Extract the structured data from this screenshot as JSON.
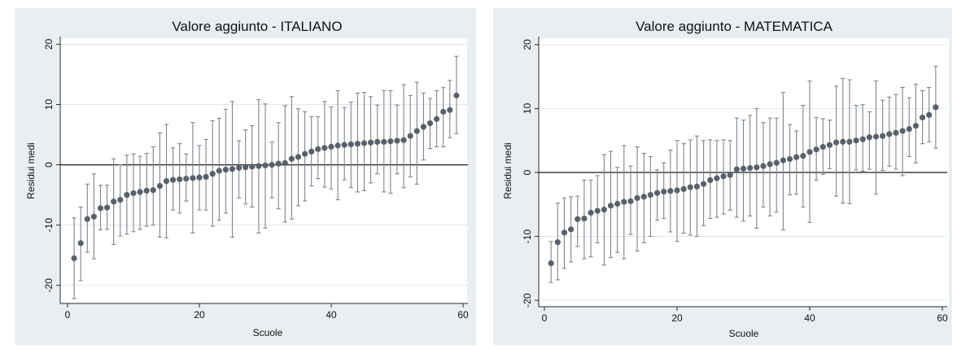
{
  "chart_data": [
    {
      "type": "scatter",
      "title": "Valore aggiunto - ITALIANO",
      "xlabel": "Scuole",
      "ylabel": "Residui medi",
      "xlim": [
        0,
        60
      ],
      "ylim": [
        -23,
        21
      ],
      "xticks": [
        0,
        20,
        40,
        60
      ],
      "yticks": [
        -20,
        -10,
        0,
        10,
        20
      ],
      "grid": true,
      "reference_line_y": 0,
      "error_bars": true,
      "points": [
        {
          "x": 1,
          "y": -15.5,
          "lo": -22.2,
          "hi": -8.8
        },
        {
          "x": 2,
          "y": -13.0,
          "lo": -19.2,
          "hi": -7.0
        },
        {
          "x": 3,
          "y": -9.0,
          "lo": -14.5,
          "hi": -3.2
        },
        {
          "x": 4,
          "y": -8.6,
          "lo": -15.6,
          "hi": -1.5
        },
        {
          "x": 5,
          "y": -7.2,
          "lo": -10.8,
          "hi": -3.4
        },
        {
          "x": 6,
          "y": -7.1,
          "lo": -10.7,
          "hi": -3.4
        },
        {
          "x": 7,
          "y": -6.1,
          "lo": -13.2,
          "hi": 1.0
        },
        {
          "x": 8,
          "y": -5.8,
          "lo": -11.8,
          "hi": 0.0
        },
        {
          "x": 9,
          "y": -5.0,
          "lo": -11.5,
          "hi": 1.6
        },
        {
          "x": 10,
          "y": -4.7,
          "lo": -11.1,
          "hi": 1.8
        },
        {
          "x": 11,
          "y": -4.5,
          "lo": -10.7,
          "hi": 1.4
        },
        {
          "x": 12,
          "y": -4.3,
          "lo": -10.2,
          "hi": 1.9
        },
        {
          "x": 13,
          "y": -4.2,
          "lo": -10.0,
          "hi": 3.0
        },
        {
          "x": 14,
          "y": -3.5,
          "lo": -12.0,
          "hi": 5.3
        },
        {
          "x": 15,
          "y": -2.7,
          "lo": -12.1,
          "hi": 6.7
        },
        {
          "x": 16,
          "y": -2.5,
          "lo": -7.5,
          "hi": 2.8
        },
        {
          "x": 17,
          "y": -2.4,
          "lo": -8.0,
          "hi": 3.5
        },
        {
          "x": 18,
          "y": -2.3,
          "lo": -6.0,
          "hi": 1.8
        },
        {
          "x": 19,
          "y": -2.2,
          "lo": -11.3,
          "hi": 7.0
        },
        {
          "x": 20,
          "y": -2.1,
          "lo": -7.5,
          "hi": 3.2
        },
        {
          "x": 21,
          "y": -2.0,
          "lo": -7.5,
          "hi": 4.2
        },
        {
          "x": 22,
          "y": -1.5,
          "lo": -10.2,
          "hi": 7.3
        },
        {
          "x": 23,
          "y": -1.0,
          "lo": -9.2,
          "hi": 7.7
        },
        {
          "x": 24,
          "y": -0.8,
          "lo": -8.0,
          "hi": 9.2
        },
        {
          "x": 25,
          "y": -0.7,
          "lo": -12.0,
          "hi": 10.5
        },
        {
          "x": 26,
          "y": -0.5,
          "lo": -5.5,
          "hi": 4.0
        },
        {
          "x": 27,
          "y": -0.4,
          "lo": -6.5,
          "hi": 5.8
        },
        {
          "x": 28,
          "y": -0.3,
          "lo": -7.0,
          "hi": 6.5
        },
        {
          "x": 29,
          "y": -0.2,
          "lo": -11.3,
          "hi": 10.8
        },
        {
          "x": 30,
          "y": -0.1,
          "lo": -10.5,
          "hi": 10.1
        },
        {
          "x": 31,
          "y": 0.0,
          "lo": -5.5,
          "hi": 3.8
        },
        {
          "x": 32,
          "y": 0.2,
          "lo": -7.3,
          "hi": 7.0
        },
        {
          "x": 33,
          "y": 0.3,
          "lo": -9.5,
          "hi": 9.8
        },
        {
          "x": 34,
          "y": 1.0,
          "lo": -9.0,
          "hi": 11.3
        },
        {
          "x": 35,
          "y": 1.3,
          "lo": -6.8,
          "hi": 9.3
        },
        {
          "x": 36,
          "y": 1.8,
          "lo": -6.0,
          "hi": 8.8
        },
        {
          "x": 37,
          "y": 2.2,
          "lo": -3.5,
          "hi": 8.0
        },
        {
          "x": 38,
          "y": 2.6,
          "lo": -2.3,
          "hi": 8.0
        },
        {
          "x": 39,
          "y": 2.8,
          "lo": -3.7,
          "hi": 10.5
        },
        {
          "x": 40,
          "y": 3.0,
          "lo": -4.0,
          "hi": 9.6
        },
        {
          "x": 41,
          "y": 3.2,
          "lo": -5.8,
          "hi": 12.3
        },
        {
          "x": 42,
          "y": 3.3,
          "lo": -2.5,
          "hi": 9.5
        },
        {
          "x": 43,
          "y": 3.4,
          "lo": -3.8,
          "hi": 10.4
        },
        {
          "x": 44,
          "y": 3.5,
          "lo": -4.5,
          "hi": 11.9
        },
        {
          "x": 45,
          "y": 3.6,
          "lo": -4.3,
          "hi": 12.0
        },
        {
          "x": 46,
          "y": 3.7,
          "lo": -3.0,
          "hi": 11.3
        },
        {
          "x": 47,
          "y": 3.8,
          "lo": -1.5,
          "hi": 9.9
        },
        {
          "x": 48,
          "y": 3.8,
          "lo": -4.5,
          "hi": 12.3
        },
        {
          "x": 49,
          "y": 3.9,
          "lo": -4.7,
          "hi": 12.3
        },
        {
          "x": 50,
          "y": 4.0,
          "lo": -1.5,
          "hi": 9.9
        },
        {
          "x": 51,
          "y": 4.1,
          "lo": -3.8,
          "hi": 13.3
        },
        {
          "x": 52,
          "y": 4.8,
          "lo": -2.0,
          "hi": 11.5
        },
        {
          "x": 53,
          "y": 5.6,
          "lo": -3.2,
          "hi": 13.7
        },
        {
          "x": 54,
          "y": 6.3,
          "lo": 0.8,
          "hi": 11.9
        },
        {
          "x": 55,
          "y": 6.9,
          "lo": 2.7,
          "hi": 11.0
        },
        {
          "x": 56,
          "y": 7.6,
          "lo": 3.0,
          "hi": 12.3
        },
        {
          "x": 57,
          "y": 8.8,
          "lo": 3.0,
          "hi": 12.8
        },
        {
          "x": 58,
          "y": 9.1,
          "lo": 4.5,
          "hi": 14.0
        },
        {
          "x": 59,
          "y": 11.5,
          "lo": 5.2,
          "hi": 18.0
        }
      ]
    },
    {
      "type": "scatter",
      "title": "Valore aggiunto - MATEMATICA",
      "xlabel": "Scuole",
      "ylabel": "Residui medi",
      "xlim": [
        0,
        60
      ],
      "ylim": [
        -21,
        21
      ],
      "xticks": [
        0,
        20,
        40,
        60
      ],
      "yticks": [
        -20,
        -10,
        0,
        10,
        20
      ],
      "grid": true,
      "reference_line_y": 0,
      "error_bars": true,
      "points": [
        {
          "x": 1,
          "y": -14.2,
          "lo": -17.2,
          "hi": -10.8
        },
        {
          "x": 2,
          "y": -10.9,
          "lo": -16.8,
          "hi": -4.8
        },
        {
          "x": 3,
          "y": -9.4,
          "lo": -15.0,
          "hi": -4.0
        },
        {
          "x": 4,
          "y": -8.9,
          "lo": -14.0,
          "hi": -3.8
        },
        {
          "x": 5,
          "y": -7.3,
          "lo": -11.6,
          "hi": -3.7
        },
        {
          "x": 6,
          "y": -7.2,
          "lo": -13.5,
          "hi": -1.2
        },
        {
          "x": 7,
          "y": -6.3,
          "lo": -13.2,
          "hi": -1.2
        },
        {
          "x": 8,
          "y": -6.0,
          "lo": -11.0,
          "hi": -0.5
        },
        {
          "x": 9,
          "y": -5.8,
          "lo": -14.5,
          "hi": 2.8
        },
        {
          "x": 10,
          "y": -5.2,
          "lo": -13.3,
          "hi": 3.3
        },
        {
          "x": 11,
          "y": -4.9,
          "lo": -12.5,
          "hi": 0.8
        },
        {
          "x": 12,
          "y": -4.6,
          "lo": -13.5,
          "hi": 4.2
        },
        {
          "x": 13,
          "y": -4.5,
          "lo": -9.7,
          "hi": 1.0
        },
        {
          "x": 14,
          "y": -4.0,
          "lo": -12.3,
          "hi": 4.0
        },
        {
          "x": 15,
          "y": -3.8,
          "lo": -11.0,
          "hi": 3.0
        },
        {
          "x": 16,
          "y": -3.5,
          "lo": -10.0,
          "hi": 2.5
        },
        {
          "x": 17,
          "y": -3.2,
          "lo": -7.5,
          "hi": 0.4
        },
        {
          "x": 18,
          "y": -3.0,
          "lo": -7.2,
          "hi": 1.5
        },
        {
          "x": 19,
          "y": -2.9,
          "lo": -9.3,
          "hi": 3.5
        },
        {
          "x": 20,
          "y": -2.8,
          "lo": -10.8,
          "hi": 5.0
        },
        {
          "x": 21,
          "y": -2.6,
          "lo": -9.5,
          "hi": 4.5
        },
        {
          "x": 22,
          "y": -2.3,
          "lo": -9.8,
          "hi": 5.1
        },
        {
          "x": 23,
          "y": -2.2,
          "lo": -10.0,
          "hi": 5.7
        },
        {
          "x": 24,
          "y": -1.8,
          "lo": -8.3,
          "hi": 5.0
        },
        {
          "x": 25,
          "y": -1.2,
          "lo": -7.2,
          "hi": 5.1
        },
        {
          "x": 26,
          "y": -0.9,
          "lo": -7.0,
          "hi": 5.0
        },
        {
          "x": 27,
          "y": -0.6,
          "lo": -6.5,
          "hi": 5.1
        },
        {
          "x": 28,
          "y": -0.4,
          "lo": -5.9,
          "hi": 5.0
        },
        {
          "x": 29,
          "y": 0.5,
          "lo": -7.0,
          "hi": 8.5
        },
        {
          "x": 30,
          "y": 0.6,
          "lo": -7.6,
          "hi": 8.2
        },
        {
          "x": 31,
          "y": 0.7,
          "lo": -6.8,
          "hi": 8.9
        },
        {
          "x": 32,
          "y": 0.8,
          "lo": -8.7,
          "hi": 10.0
        },
        {
          "x": 33,
          "y": 1.0,
          "lo": -5.4,
          "hi": 7.8
        },
        {
          "x": 34,
          "y": 1.3,
          "lo": -6.8,
          "hi": 8.5
        },
        {
          "x": 35,
          "y": 1.5,
          "lo": -6.2,
          "hi": 8.5
        },
        {
          "x": 36,
          "y": 1.9,
          "lo": -9.0,
          "hi": 12.5
        },
        {
          "x": 37,
          "y": 2.1,
          "lo": -3.5,
          "hi": 7.5
        },
        {
          "x": 38,
          "y": 2.4,
          "lo": -3.4,
          "hi": 6.5
        },
        {
          "x": 39,
          "y": 2.6,
          "lo": -5.4,
          "hi": 10.5
        },
        {
          "x": 40,
          "y": 3.2,
          "lo": -7.8,
          "hi": 14.3
        },
        {
          "x": 41,
          "y": 3.6,
          "lo": -1.2,
          "hi": 8.6
        },
        {
          "x": 42,
          "y": 4.0,
          "lo": -0.3,
          "hi": 8.4
        },
        {
          "x": 43,
          "y": 4.3,
          "lo": 0.6,
          "hi": 8.2
        },
        {
          "x": 44,
          "y": 4.7,
          "lo": -3.7,
          "hi": 13.5
        },
        {
          "x": 45,
          "y": 4.8,
          "lo": -4.8,
          "hi": 14.7
        },
        {
          "x": 46,
          "y": 4.8,
          "lo": -4.9,
          "hi": 14.5
        },
        {
          "x": 47,
          "y": 5.0,
          "lo": 0.4,
          "hi": 10.5
        },
        {
          "x": 48,
          "y": 5.2,
          "lo": 0.2,
          "hi": 10.6
        },
        {
          "x": 49,
          "y": 5.5,
          "lo": 0.5,
          "hi": 9.5
        },
        {
          "x": 50,
          "y": 5.6,
          "lo": -3.4,
          "hi": 14.3
        },
        {
          "x": 51,
          "y": 5.7,
          "lo": 0.3,
          "hi": 11.3
        },
        {
          "x": 52,
          "y": 6.0,
          "lo": 1.0,
          "hi": 11.8
        },
        {
          "x": 53,
          "y": 6.2,
          "lo": 0.5,
          "hi": 12.2
        },
        {
          "x": 54,
          "y": 6.5,
          "lo": -0.5,
          "hi": 13.3
        },
        {
          "x": 55,
          "y": 6.8,
          "lo": 2.5,
          "hi": 11.7
        },
        {
          "x": 56,
          "y": 7.3,
          "lo": 1.5,
          "hi": 13.8
        },
        {
          "x": 57,
          "y": 8.6,
          "lo": 4.5,
          "hi": 12.8
        },
        {
          "x": 58,
          "y": 9.0,
          "lo": 4.8,
          "hi": 13.3
        },
        {
          "x": 59,
          "y": 10.2,
          "lo": 3.8,
          "hi": 16.6
        }
      ]
    }
  ],
  "colors": {
    "panel_background": "#e9eef2",
    "plot_background": "#ffffff",
    "grid": "#e1e6ea",
    "marker": "#58616b",
    "error_bar": "#7d858e",
    "zero_line": "#1b1b1b",
    "axis": "#2a2a2a"
  }
}
